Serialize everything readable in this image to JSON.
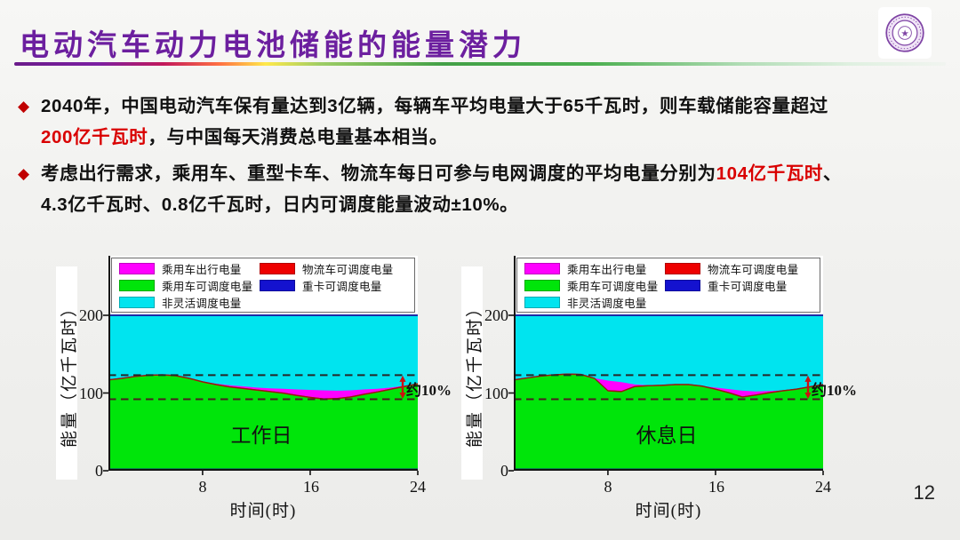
{
  "slide": {
    "title": "电动汽车动力电池储能的能量潜力",
    "title_color": "#6C1F9F",
    "page_number": "12",
    "logo": "tsinghua-university-seal",
    "accent_purple": "#6C1F9F",
    "accent_red": "#D90000"
  },
  "bullets": [
    {
      "marker": "◆",
      "lines": [
        [
          {
            "text": "2040年，中国电动汽车保有量达到3亿辆，每辆车平均电量大于65千瓦时，则车载储能容量超过",
            "color": "#111111"
          }
        ],
        [
          {
            "text": "200亿千瓦时",
            "color": "#D90000"
          },
          {
            "text": "，与中国每天消费总电量基本相当。",
            "color": "#111111"
          }
        ]
      ]
    },
    {
      "marker": "◆",
      "lines": [
        [
          {
            "text": "考虑出行需求，乘用车、重型卡车、物流车每日可参与电网调度的平均电量分别为",
            "color": "#111111"
          },
          {
            "text": "104亿千瓦时",
            "color": "#D90000"
          },
          {
            "text": "、",
            "color": "#111111"
          }
        ],
        [
          {
            "text": "4.3亿千瓦时、0.8亿千瓦时，日内可调度能量波动±10%。",
            "color": "#111111"
          }
        ]
      ]
    }
  ],
  "legend": {
    "items": [
      {
        "label": "乘用车出行电量",
        "color": "#FF00FF",
        "series_key": "passenger_travel"
      },
      {
        "label": "物流车可调度电量",
        "color": "#EE0000",
        "series_key": "logistics_dispatchable"
      },
      {
        "label": "乘用车可调度电量",
        "color": "#00E50A",
        "series_key": "passenger_dispatchable"
      },
      {
        "label": "重卡可调度电量",
        "color": "#1412CF",
        "series_key": "heavy_truck_dispatchable"
      },
      {
        "label": "非灵活调度电量",
        "color": "#00E4EF",
        "series_key": "inflexible"
      }
    ]
  },
  "chart_colors": {
    "magenta": "#FF00FF",
    "green": "#00E50A",
    "cyan": "#00E4EF",
    "red": "#EE0000",
    "blue": "#1412CF",
    "navy_band": "#14169C",
    "top_line": "#1B2EA8",
    "edge_line": "#8B1C10",
    "dashed_upper": "#262626",
    "dashed_lower": "#4A1F1F",
    "arrow": "#CC1111",
    "axis": "#111111"
  },
  "chart_data": [
    {
      "type": "area",
      "inner_label": "工作日",
      "xlabel": "时间(时)",
      "ylabel": "能量（亿千瓦时）",
      "xlim": [
        1,
        24
      ],
      "ylim": [
        0,
        200
      ],
      "x_ticks": [
        8,
        16,
        24
      ],
      "y_ticks": [
        0,
        100,
        200
      ],
      "hours": [
        1,
        2,
        3,
        4,
        5,
        6,
        7,
        8,
        9,
        10,
        11,
        12,
        13,
        14,
        15,
        16,
        17,
        18,
        19,
        20,
        21,
        22,
        23,
        24
      ],
      "stack": {
        "heavy_truck_band": 2.8,
        "passenger_dispatchable_top": [
          116,
          118,
          120.5,
          122,
          122.5,
          121.5,
          118,
          113.5,
          110,
          107,
          105,
          103,
          101,
          99,
          96,
          93.5,
          91.5,
          92,
          94,
          97.5,
          100.5,
          104,
          107.5,
          111
        ],
        "logistics_band": 1.6,
        "passenger_travel_top": [
          116,
          118,
          120.5,
          122,
          122.5,
          121.5,
          118.5,
          115,
          112,
          110,
          108.5,
          107,
          106,
          105.5,
          104.5,
          104,
          103.5,
          103,
          103.5,
          104.5,
          105.5,
          107,
          109.5,
          112
        ],
        "inflexible_top": 200
      },
      "dashed_lines": [
        123,
        92
      ],
      "annotation": "约10%"
    },
    {
      "type": "area",
      "inner_label": "休息日",
      "xlabel": "时间(时)",
      "ylabel": "能量（亿千瓦时）",
      "xlim": [
        1,
        24
      ],
      "ylim": [
        0,
        200
      ],
      "x_ticks": [
        8,
        16,
        24
      ],
      "y_ticks": [
        0,
        100,
        200
      ],
      "hours": [
        1,
        2,
        3,
        4,
        5,
        6,
        7,
        8,
        9,
        10,
        11,
        12,
        13,
        14,
        15,
        16,
        17,
        18,
        19,
        20,
        21,
        22,
        23,
        24
      ],
      "stack": {
        "heavy_truck_band": 2.8,
        "passenger_dispatchable_top": [
          116,
          118.5,
          121,
          122.5,
          123.5,
          123,
          118,
          102,
          101,
          107.5,
          108.5,
          109,
          110,
          110,
          108,
          104,
          99.5,
          94,
          96.5,
          99.5,
          102,
          104,
          107,
          110
        ],
        "logistics_band": 1.6,
        "passenger_travel_top": [
          116,
          118.5,
          121,
          122.5,
          123.5,
          123,
          119,
          116,
          114,
          111,
          110,
          110,
          111,
          111,
          109,
          107,
          105,
          103,
          102,
          102.5,
          103.5,
          105.5,
          108,
          111
        ],
        "inflexible_top": 200
      },
      "dashed_lines": [
        123,
        92
      ],
      "annotation": "约10%"
    }
  ]
}
